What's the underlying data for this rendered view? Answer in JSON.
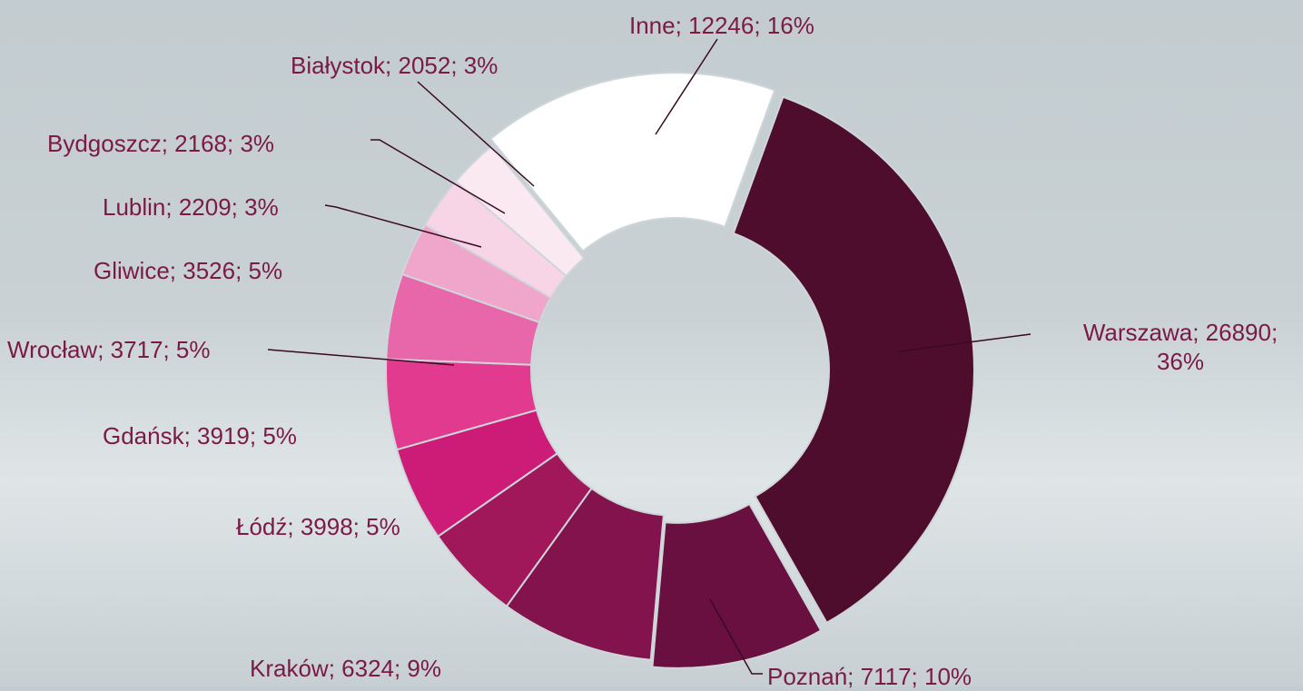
{
  "chart_data": {
    "type": "donut",
    "values": [
      26890,
      7117,
      6324,
      3998,
      3919,
      3717,
      3526,
      2209,
      2168,
      2052,
      12246
    ],
    "value_labels": [
      "Warszawa; 26890; 36%",
      "Poznań; 7117; 10%",
      "Kraków; 6324; 9%",
      "Łódź; 3998; 5%",
      "Gdańsk; 3919; 5%",
      "Wrocław; 3717; 5%",
      "Gliwice; 3526; 5%",
      "Lublin; 2209; 3%",
      "Bydgoszcz; 2168; 3%",
      "Białystok; 2052; 3%",
      "Inne; 12246; 16%"
    ],
    "colors": [
      "#4f0d2e",
      "#6a1040",
      "#82134c",
      "#a0175a",
      "#cc1c78",
      "#e23a8e",
      "#e867aa",
      "#f0a6cb",
      "#f7d5e6",
      "#fbe9f1",
      "#ffffff"
    ]
  }
}
